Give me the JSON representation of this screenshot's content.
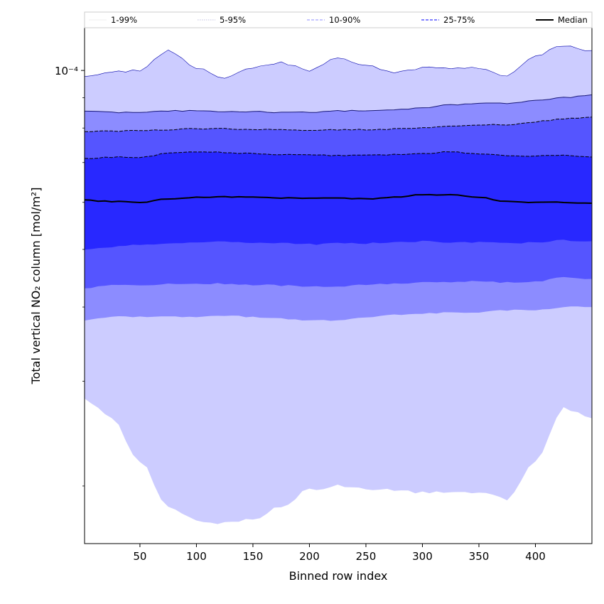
{
  "chart_data": {
    "type": "area",
    "xlabel": "Binned row index",
    "ylabel": "Total vertical NO₂ column [mol/m²]",
    "x_ticks": [
      50,
      100,
      150,
      200,
      250,
      300,
      350,
      400
    ],
    "xlim": [
      1,
      450
    ],
    "y_scale": "log",
    "ylim": [
      1.6e-05,
      0.000118
    ],
    "y_tick_labels": [
      {
        "value": 0.0001,
        "label": "10⁻⁴"
      }
    ],
    "y_minor_ticks": [
      2e-05,
      3e-05,
      4e-05,
      5e-05,
      6e-05,
      7e-05,
      8e-05,
      9e-05
    ],
    "grid": false,
    "legend_position": "top",
    "x": [
      1,
      25,
      50,
      75,
      100,
      125,
      150,
      175,
      200,
      225,
      250,
      275,
      300,
      325,
      350,
      375,
      400,
      425,
      450
    ],
    "bands": [
      {
        "name": "1-99%",
        "color": "#ccccff",
        "line_color": "#0000aa",
        "lower": [
          2.8e-05,
          2.6e-05,
          2.2e-05,
          1.85e-05,
          1.75e-05,
          1.73e-05,
          1.76e-05,
          1.85e-05,
          1.97e-05,
          2e-05,
          1.98e-05,
          1.97e-05,
          1.95e-05,
          1.95e-05,
          1.95e-05,
          1.9e-05,
          2.2e-05,
          2.7e-05,
          2.6e-05
        ],
        "upper": [
          9.8e-05,
          9.95e-05,
          0.0001,
          0.000108,
          0.000101,
          9.7e-05,
          0.000101,
          0.000103,
          0.0001,
          0.000105,
          0.000102,
          9.9e-05,
          0.000101,
          0.000101,
          0.000101,
          9.8e-05,
          0.000106,
          0.00011,
          0.000108
        ]
      },
      {
        "name": "5-95%",
        "color": "#8c8cff",
        "line_color": "#1a1a7a",
        "lower": [
          3.8e-05,
          3.85e-05,
          3.85e-05,
          3.85e-05,
          3.85e-05,
          3.87e-05,
          3.85e-05,
          3.82e-05,
          3.8e-05,
          3.8e-05,
          3.85e-05,
          3.88e-05,
          3.9e-05,
          3.92e-05,
          3.92e-05,
          3.95e-05,
          3.95e-05,
          4e-05,
          4e-05
        ],
        "upper": [
          8.55e-05,
          8.5e-05,
          8.5e-05,
          8.55e-05,
          8.55e-05,
          8.53e-05,
          8.53e-05,
          8.5e-05,
          8.5e-05,
          8.55e-05,
          8.55e-05,
          8.58e-05,
          8.65e-05,
          8.75e-05,
          8.8e-05,
          8.8e-05,
          8.9e-05,
          9e-05,
          9.1e-05
        ]
      },
      {
        "name": "10-90%",
        "color": "#5555ff",
        "line_color": "#000000",
        "lower": [
          4.3e-05,
          4.35e-05,
          4.35e-05,
          4.37e-05,
          4.38e-05,
          4.38e-05,
          4.36e-05,
          4.35e-05,
          4.33e-05,
          4.33e-05,
          4.36e-05,
          4.38e-05,
          4.4e-05,
          4.4e-05,
          4.42e-05,
          4.4e-05,
          4.42e-05,
          4.48e-05,
          4.46e-05
        ],
        "upper": [
          7.9e-05,
          7.9e-05,
          7.92e-05,
          7.95e-05,
          7.98e-05,
          7.98e-05,
          7.95e-05,
          7.95e-05,
          7.93e-05,
          7.95e-05,
          7.95e-05,
          7.97e-05,
          8e-05,
          8.05e-05,
          8.1e-05,
          8.1e-05,
          8.2e-05,
          8.3e-05,
          8.35e-05
        ]
      },
      {
        "name": "25-75%",
        "color": "#2828ff",
        "line_color": "#000000",
        "lower": [
          5e-05,
          5.05e-05,
          5.1e-05,
          5.12e-05,
          5.15e-05,
          5.15e-05,
          5.13e-05,
          5.12e-05,
          5.1e-05,
          5.12e-05,
          5.12e-05,
          5.14e-05,
          5.16e-05,
          5.14e-05,
          5.14e-05,
          5.12e-05,
          5.14e-05,
          5.18e-05,
          5.16e-05
        ],
        "upper": [
          7.1e-05,
          7.15e-05,
          7.15e-05,
          7.25e-05,
          7.3e-05,
          7.28e-05,
          7.25e-05,
          7.22e-05,
          7.2e-05,
          7.2e-05,
          7.2e-05,
          7.22e-05,
          7.25e-05,
          7.3e-05,
          7.25e-05,
          7.2e-05,
          7.18e-05,
          7.2e-05,
          7.15e-05
        ]
      }
    ],
    "median": {
      "name": "Median",
      "color": "#000000",
      "values": [
        6.05e-05,
        6.02e-05,
        6e-05,
        6.08e-05,
        6.12e-05,
        6.13e-05,
        6.12e-05,
        6.1e-05,
        6.1e-05,
        6.1e-05,
        6.08e-05,
        6.12e-05,
        6.18e-05,
        6.18e-05,
        6.12e-05,
        6.02e-05,
        6e-05,
        6e-05,
        5.98e-05
      ]
    },
    "legend": [
      {
        "label": "1-99%",
        "color": "#e0e0e0",
        "style": "solid",
        "width": 0.6
      },
      {
        "label": "5-95%",
        "color": "#b0b0d8",
        "style": "dotted",
        "width": 0.8
      },
      {
        "label": "10-90%",
        "color": "#8c8cff",
        "style": "dashed",
        "width": 1.0
      },
      {
        "label": "25-75%",
        "color": "#5555ff",
        "style": "dashed",
        "width": 1.4
      },
      {
        "label": "Median",
        "color": "#000000",
        "style": "solid",
        "width": 2.0
      }
    ]
  }
}
